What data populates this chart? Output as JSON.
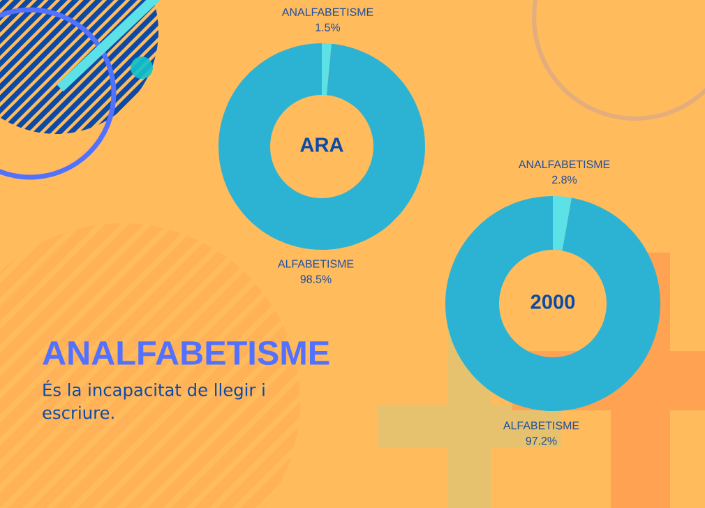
{
  "chart_data": [
    {
      "type": "donut",
      "title": "ARA",
      "categories": [
        "ANALFABETISME",
        "ALFABETISME"
      ],
      "values": [
        1.5,
        98.5
      ],
      "colors": [
        "#5ce1e6",
        "#2cb3d4"
      ],
      "value_labels": [
        "1.5%",
        "98.5%"
      ]
    },
    {
      "type": "donut",
      "title": "2000",
      "categories": [
        "ANALFABETISME",
        "ALFABETISME"
      ],
      "values": [
        2.8,
        97.2
      ],
      "colors": [
        "#5ce1e6",
        "#2cb3d4"
      ],
      "value_labels": [
        "2.8%",
        "97.2%"
      ]
    },
    {
      "type": "other",
      "title": "ANALFABETISME",
      "subtitle": "És la incapacitat de llegir i escriure."
    }
  ]
}
